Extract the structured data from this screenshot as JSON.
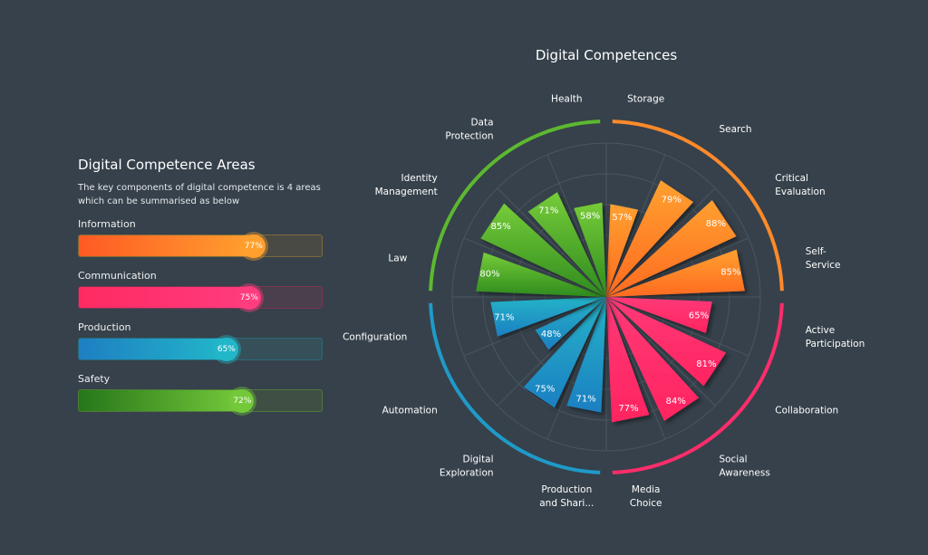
{
  "panel": {
    "title": "Digital Competence Areas",
    "description": "The key components of digital competence is 4 areas which can be summarised as below",
    "areas": [
      {
        "label": "Information",
        "value": 77,
        "value_label": "77%",
        "from": "#ff5a24",
        "to": "#ffa02e",
        "track": "#4a4a44",
        "border": "#7a6a3a"
      },
      {
        "label": "Communication",
        "value": 75,
        "value_label": "75%",
        "from": "#ff2a62",
        "to": "#ff3c7e",
        "track": "#4a3f4c",
        "border": "#7a3552"
      },
      {
        "label": "Production",
        "value": 65,
        "value_label": "65%",
        "from": "#1e7fc2",
        "to": "#22b6c9",
        "track": "#36505a",
        "border": "#2a6a78"
      },
      {
        "label": "Safety",
        "value": 72,
        "value_label": "72%",
        "from": "#26761a",
        "to": "#74c93a",
        "track": "#3f4f44",
        "border": "#4f7a3a"
      }
    ]
  },
  "chart_data": {
    "type": "polar-bar",
    "title": "Digital Competences",
    "rmax": 100,
    "grid": true,
    "groups": [
      {
        "name": "Information",
        "color_from": "#ff6a20",
        "color_to": "#ffa030",
        "arc": "#ff8a2a"
      },
      {
        "name": "Communication",
        "color_from": "#ff2460",
        "color_to": "#ff3a78",
        "arc": "#ff2d6b"
      },
      {
        "name": "Production",
        "color_from": "#1e7fc2",
        "color_to": "#22b4c8",
        "arc": "#1f9ac8"
      },
      {
        "name": "Safety",
        "color_from": "#2e8a1e",
        "color_to": "#76cc38",
        "arc": "#5cb830"
      }
    ],
    "categories": [
      {
        "label": [
          "Storage"
        ],
        "value": 57,
        "group": 0
      },
      {
        "label": [
          "Search"
        ],
        "value": 79,
        "group": 0
      },
      {
        "label": [
          "Critical",
          "Evaluation"
        ],
        "value": 88,
        "group": 0
      },
      {
        "label": [
          "Self-",
          "Service"
        ],
        "value": 85,
        "group": 0
      },
      {
        "label": [
          "Active",
          "Participation"
        ],
        "value": 65,
        "group": 1
      },
      {
        "label": [
          "Collaboration"
        ],
        "value": 81,
        "group": 1
      },
      {
        "label": [
          "Social",
          "Awareness"
        ],
        "value": 84,
        "group": 1
      },
      {
        "label": [
          "Media",
          "Choice"
        ],
        "value": 77,
        "group": 1
      },
      {
        "label": [
          "Production",
          "and Shari..."
        ],
        "value": 71,
        "group": 2
      },
      {
        "label": [
          "Digital",
          "Exploration"
        ],
        "value": 75,
        "group": 2
      },
      {
        "label": [
          "Automation"
        ],
        "value": 48,
        "group": 2
      },
      {
        "label": [
          "Configuration"
        ],
        "value": 71,
        "group": 2
      },
      {
        "label": [
          "Law"
        ],
        "value": 80,
        "group": 3
      },
      {
        "label": [
          "Identity",
          "Management"
        ],
        "value": 85,
        "group": 3
      },
      {
        "label": [
          "Data",
          "Protection"
        ],
        "value": 71,
        "group": 3
      },
      {
        "label": [
          "Health"
        ],
        "value": 58,
        "group": 3
      }
    ]
  }
}
